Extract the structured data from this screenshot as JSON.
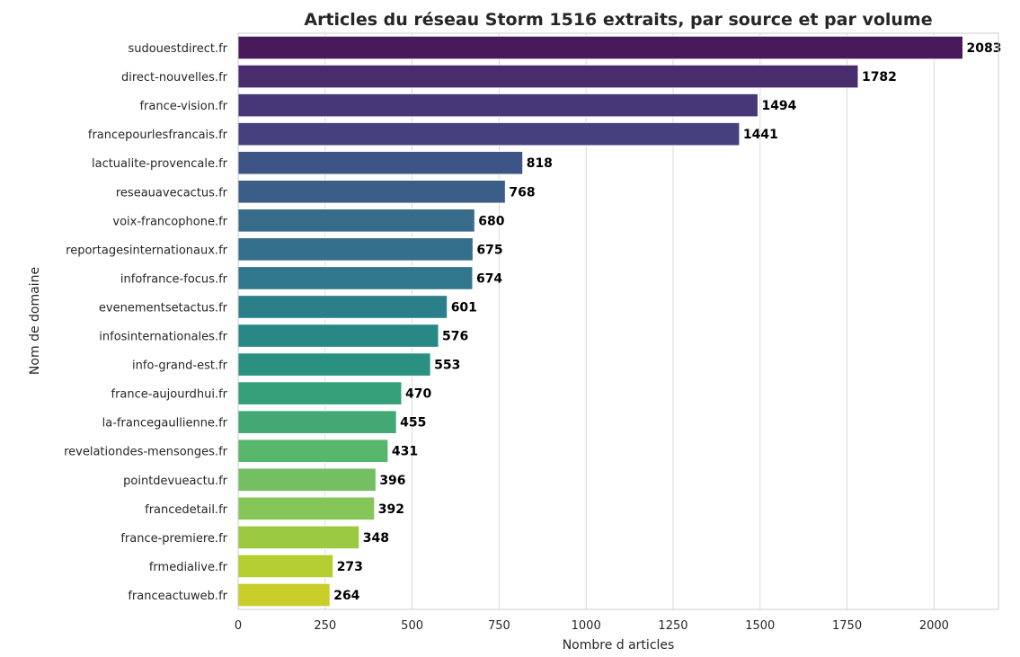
{
  "chart_data": {
    "type": "bar",
    "orientation": "horizontal",
    "title": "Articles du réseau Storm 1516 extraits, par source et par volume",
    "xlabel": "Nombre d articles",
    "ylabel": "Nom de domaine",
    "xlim": [
      0,
      2185
    ],
    "xticks": [
      0,
      250,
      500,
      750,
      1000,
      1250,
      1500,
      1750,
      2000
    ],
    "grid": true,
    "legend": "none",
    "palette": "viridis",
    "categories": [
      "sudouestdirect.fr",
      "direct-nouvelles.fr",
      "france-vision.fr",
      "francepourlesfrancais.fr",
      "lactualite-provencale.fr",
      "reseauavecactus.fr",
      "voix-francophone.fr",
      "reportagesinternationaux.fr",
      "infofrance-focus.fr",
      "evenementsetactus.fr",
      "infosinternationales.fr",
      "info-grand-est.fr",
      "france-aujourdhui.fr",
      "la-francegaullienne.fr",
      "revelationdes-mensonges.fr",
      "pointdevueactu.fr",
      "francedetail.fr",
      "france-premiere.fr",
      "frmedialive.fr",
      "franceactuweb.fr"
    ],
    "values": [
      2083,
      1782,
      1494,
      1441,
      818,
      768,
      680,
      675,
      674,
      601,
      576,
      553,
      470,
      455,
      431,
      396,
      392,
      348,
      273,
      264
    ],
    "colors": [
      "#481a5a",
      "#482c6b",
      "#473778",
      "#45417f",
      "#3f5486",
      "#3b5e88",
      "#386b89",
      "#346f8b",
      "#30778b",
      "#2b7f88",
      "#288886",
      "#2a9180",
      "#35a07a",
      "#43a874",
      "#55b66c",
      "#74bf62",
      "#86c658",
      "#9cc942",
      "#b4ce32",
      "#c8cd2a"
    ]
  }
}
